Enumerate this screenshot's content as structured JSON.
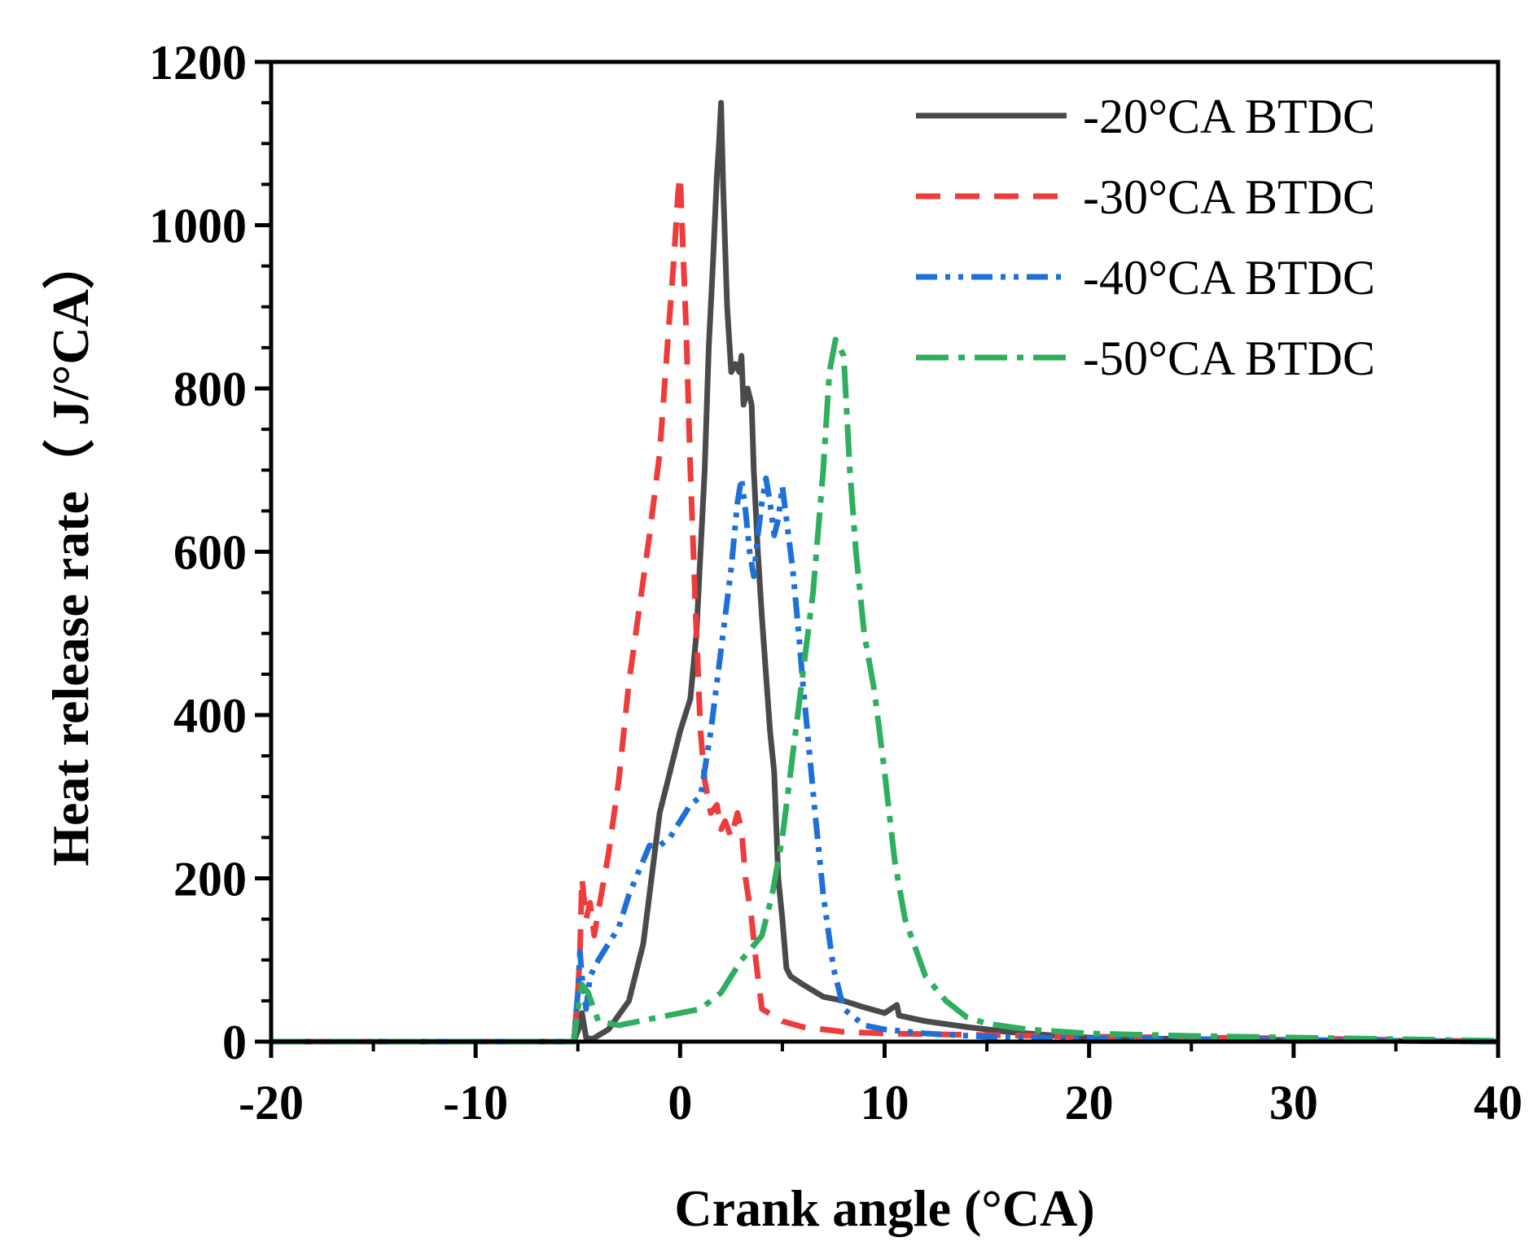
{
  "chart_data": {
    "type": "line",
    "title": "",
    "xlabel": "Crank angle (°CA)",
    "ylabel": "Heat release rate（ J/°CA）",
    "xlim": [
      -20,
      40
    ],
    "ylim": [
      0,
      1200
    ],
    "xticks": [
      -20,
      -10,
      0,
      10,
      20,
      30,
      40
    ],
    "yticks": [
      0,
      200,
      400,
      600,
      800,
      1000,
      1200
    ],
    "x_tick_labels": [
      "-20",
      "-10",
      "0",
      "10",
      "20",
      "30",
      "40"
    ],
    "y_tick_labels": [
      "0",
      "200",
      "400",
      "600",
      "800",
      "1000",
      "1200"
    ],
    "grid": false,
    "legend_position": "top-right",
    "series": [
      {
        "name": "-20°CA BTDC",
        "color": "#4a4a4a",
        "dash": "solid",
        "x": [
          -20,
          -5.2,
          -4.9,
          -4.8,
          -4.6,
          -4.3,
          -3.5,
          -2.5,
          -1.8,
          -1.5,
          -1.0,
          -0.6,
          0,
          0.5,
          0.8,
          1.0,
          1.2,
          1.4,
          1.6,
          1.8,
          1.9,
          2.0,
          2.1,
          2.3,
          2.5,
          2.7,
          2.9,
          3.0,
          3.1,
          3.3,
          3.5,
          3.6,
          3.8,
          4.0,
          4.2,
          4.4,
          4.6,
          4.8,
          5.0,
          5.2,
          5.4,
          6.0,
          7.0,
          8.0,
          9.0,
          10.0,
          10.6,
          10.7,
          12,
          14,
          16,
          18,
          20,
          25,
          30,
          35,
          40
        ],
        "y": [
          0,
          0,
          20,
          35,
          5,
          3,
          15,
          50,
          120,
          180,
          280,
          320,
          380,
          420,
          500,
          600,
          700,
          850,
          950,
          1060,
          1100,
          1150,
          1050,
          900,
          820,
          830,
          820,
          840,
          780,
          800,
          780,
          700,
          600,
          520,
          450,
          380,
          330,
          200,
          150,
          90,
          80,
          70,
          55,
          50,
          42,
          35,
          45,
          32,
          25,
          18,
          12,
          8,
          5,
          3,
          2,
          1,
          0
        ]
      },
      {
        "name": "-30°CA BTDC",
        "color": "#ee3b3b",
        "dash": "30,18",
        "x": [
          -20,
          -5.2,
          -5.0,
          -4.9,
          -4.8,
          -4.6,
          -4.4,
          -4.2,
          -4.0,
          -3.5,
          -3.0,
          -2.5,
          -2.0,
          -1.5,
          -1.2,
          -1.0,
          -0.6,
          -0.3,
          -0.1,
          0.0,
          0.3,
          0.5,
          0.8,
          1.0,
          1.2,
          1.5,
          1.8,
          2.0,
          2.2,
          2.5,
          2.8,
          3.0,
          3.2,
          3.5,
          3.7,
          4.0,
          5.0,
          6.0,
          8.0,
          10.0,
          15,
          20,
          25,
          30,
          35,
          40
        ],
        "y": [
          0,
          0,
          60,
          110,
          200,
          150,
          170,
          130,
          160,
          230,
          320,
          440,
          530,
          620,
          680,
          720,
          860,
          960,
          1040,
          1060,
          870,
          700,
          500,
          380,
          320,
          280,
          290,
          260,
          270,
          250,
          280,
          260,
          200,
          150,
          100,
          40,
          25,
          18,
          12,
          10,
          8,
          6,
          5,
          4,
          2,
          0
        ]
      },
      {
        "name": "-40°CA BTDC",
        "color": "#1f6fd8",
        "dash": "26,10,6,10,6,10",
        "x": [
          -20,
          -5.2,
          -5.0,
          -4.9,
          -4.8,
          -4.6,
          -4.4,
          -4.0,
          -3.5,
          -3.0,
          -2.5,
          -2.0,
          -1.5,
          -1.0,
          -0.5,
          0,
          0.5,
          1.0,
          1.5,
          2.0,
          2.5,
          2.8,
          3.0,
          3.2,
          3.4,
          3.6,
          3.8,
          4.0,
          4.2,
          4.4,
          4.6,
          4.8,
          5.0,
          5.2,
          5.5,
          5.8,
          6.0,
          6.3,
          6.6,
          7.0,
          7.5,
          8.0,
          9.0,
          10.0,
          12.0,
          15,
          20,
          25,
          30,
          35,
          40
        ],
        "y": [
          0,
          0,
          60,
          110,
          80,
          40,
          80,
          100,
          120,
          140,
          180,
          210,
          240,
          240,
          250,
          270,
          290,
          300,
          380,
          480,
          580,
          660,
          690,
          650,
          600,
          570,
          620,
          660,
          690,
          660,
          620,
          640,
          680,
          640,
          580,
          500,
          440,
          360,
          280,
          180,
          90,
          40,
          20,
          15,
          10,
          6,
          4,
          3,
          2,
          1,
          0
        ]
      },
      {
        "name": "-50°CA BTDC",
        "color": "#2fae5f",
        "dash": "40,12,8,12",
        "x": [
          -20,
          -5.2,
          -5.0,
          -4.8,
          -4.5,
          -4.0,
          -3.0,
          -2.0,
          -1.0,
          0,
          1.0,
          2.0,
          3.0,
          4.0,
          4.5,
          5.0,
          5.5,
          6.0,
          6.5,
          7.0,
          7.3,
          7.6,
          8.0,
          8.3,
          8.6,
          9.0,
          9.5,
          10.0,
          10.5,
          11.0,
          12.0,
          13.0,
          14.0,
          15.0,
          17.0,
          20.0,
          25.0,
          30.0,
          35,
          40
        ],
        "y": [
          0,
          0,
          40,
          70,
          60,
          25,
          20,
          25,
          30,
          35,
          40,
          60,
          100,
          130,
          180,
          250,
          350,
          450,
          550,
          700,
          820,
          860,
          840,
          700,
          600,
          500,
          430,
          330,
          220,
          150,
          80,
          50,
          30,
          22,
          15,
          10,
          7,
          5,
          3,
          1
        ]
      }
    ]
  }
}
